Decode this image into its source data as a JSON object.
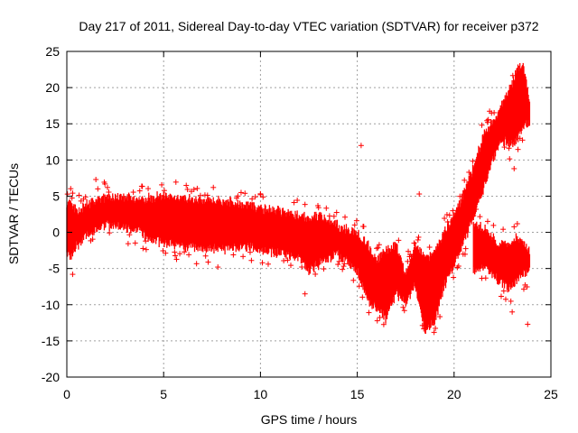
{
  "chart_data": {
    "type": "scatter",
    "title": "Day 217 of 2011, Sidereal Day-to-day VTEC variation (SDTVAR) for receiver p372",
    "xlabel": "GPS time / hours",
    "ylabel": "SDTVAR / TECUs",
    "xlim": [
      0,
      25
    ],
    "ylim": [
      -20,
      25
    ],
    "xticks": [
      0,
      5,
      10,
      15,
      20,
      25
    ],
    "yticks": [
      -20,
      -15,
      -10,
      -5,
      0,
      5,
      10,
      15,
      20,
      25
    ],
    "grid": true,
    "marker": "+",
    "series": [
      {
        "name": "SDTVAR",
        "color": "#ff0000",
        "envelope": [
          {
            "x": 0.0,
            "lo": -3.5,
            "hi": 4.5
          },
          {
            "x": 0.2,
            "lo": -4.0,
            "hi": 5.0
          },
          {
            "x": 0.5,
            "lo": -2.5,
            "hi": 3.5
          },
          {
            "x": 1.0,
            "lo": -1.0,
            "hi": 4.5
          },
          {
            "x": 2.0,
            "lo": 0.5,
            "hi": 5.5
          },
          {
            "x": 3.0,
            "lo": 0.0,
            "hi": 5.5
          },
          {
            "x": 3.8,
            "lo": -0.5,
            "hi": 5.0
          },
          {
            "x": 4.2,
            "lo": -1.5,
            "hi": 5.5
          },
          {
            "x": 5.0,
            "lo": -2.0,
            "hi": 5.5
          },
          {
            "x": 6.0,
            "lo": -2.5,
            "hi": 5.5
          },
          {
            "x": 7.0,
            "lo": -3.0,
            "hi": 5.0
          },
          {
            "x": 8.0,
            "lo": -3.0,
            "hi": 5.0
          },
          {
            "x": 9.0,
            "lo": -2.5,
            "hi": 4.5
          },
          {
            "x": 10.0,
            "lo": -3.0,
            "hi": 4.0
          },
          {
            "x": 11.0,
            "lo": -3.5,
            "hi": 3.5
          },
          {
            "x": 12.0,
            "lo": -4.0,
            "hi": 3.0
          },
          {
            "x": 12.5,
            "lo": -6.0,
            "hi": 2.5
          },
          {
            "x": 13.0,
            "lo": -5.0,
            "hi": 3.0
          },
          {
            "x": 14.0,
            "lo": -3.5,
            "hi": 1.5
          },
          {
            "x": 15.0,
            "lo": -6.0,
            "hi": 0.5
          },
          {
            "x": 15.5,
            "lo": -10.0,
            "hi": -1.0
          },
          {
            "x": 16.0,
            "lo": -11.0,
            "hi": -3.0
          },
          {
            "x": 16.5,
            "lo": -12.5,
            "hi": -2.0
          },
          {
            "x": 17.0,
            "lo": -9.0,
            "hi": -1.0
          },
          {
            "x": 17.5,
            "lo": -10.5,
            "hi": -5.0
          },
          {
            "x": 18.0,
            "lo": -8.0,
            "hi": -1.0
          },
          {
            "x": 18.5,
            "lo": -14.0,
            "hi": -3.0
          },
          {
            "x": 19.0,
            "lo": -13.0,
            "hi": -2.0
          },
          {
            "x": 19.5,
            "lo": -8.0,
            "hi": 0.5
          },
          {
            "x": 20.0,
            "lo": -5.0,
            "hi": 3.0
          },
          {
            "x": 20.5,
            "lo": -2.0,
            "hi": 6.0
          },
          {
            "x": 21.0,
            "lo": 1.5,
            "hi": 9.5
          },
          {
            "x": 21.5,
            "lo": 5.0,
            "hi": 14.0
          },
          {
            "x": 22.0,
            "lo": 9.5,
            "hi": 16.0
          },
          {
            "x": 22.5,
            "lo": 12.0,
            "hi": 18.5
          },
          {
            "x": 23.0,
            "lo": 11.5,
            "hi": 21.0
          },
          {
            "x": 23.3,
            "lo": 12.5,
            "hi": 23.5
          },
          {
            "x": 23.6,
            "lo": 14.0,
            "hi": 23.5
          },
          {
            "x": 23.9,
            "lo": 14.5,
            "hi": 19.0
          }
        ],
        "lower_cluster": [
          {
            "x": 21.0,
            "lo": -6.0,
            "hi": 2.0
          },
          {
            "x": 21.7,
            "lo": -5.5,
            "hi": 1.0
          },
          {
            "x": 22.3,
            "lo": -7.5,
            "hi": -1.0
          },
          {
            "x": 22.8,
            "lo": -8.5,
            "hi": -1.0
          },
          {
            "x": 23.3,
            "lo": -7.0,
            "hi": 0.0
          },
          {
            "x": 23.9,
            "lo": -6.0,
            "hi": -2.0
          }
        ],
        "outliers": [
          {
            "x": 15.2,
            "y": 12.0
          },
          {
            "x": 23.1,
            "y": 8.8
          },
          {
            "x": 23.8,
            "y": -12.7
          },
          {
            "x": 23.0,
            "y": -11.0
          },
          {
            "x": 10.0,
            "y": 5.2
          },
          {
            "x": 9.0,
            "y": 5.5
          },
          {
            "x": 1.5,
            "y": 7.3
          },
          {
            "x": 18.2,
            "y": 5.3
          },
          {
            "x": 0.3,
            "y": -5.8
          },
          {
            "x": 7.8,
            "y": -4.8
          },
          {
            "x": 12.3,
            "y": -8.5
          }
        ]
      }
    ]
  }
}
